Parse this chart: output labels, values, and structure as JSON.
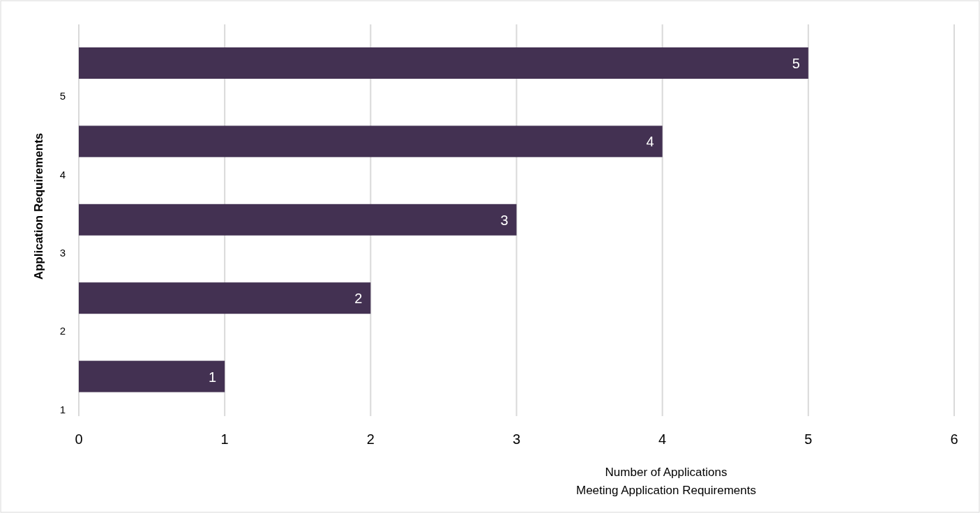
{
  "chart_data": {
    "type": "bar",
    "orientation": "horizontal",
    "ylabel": "Application Requirements",
    "xlabel": "Number of Applications\nMeeting Application Requirements",
    "categories": [
      "5",
      "4",
      "3",
      "2",
      "1"
    ],
    "values": [
      5,
      4,
      3,
      2,
      1
    ],
    "color": "#433152",
    "xlim": [
      0,
      6
    ],
    "xticks": [
      0,
      1,
      2,
      3,
      4,
      5,
      6
    ],
    "grid": "x",
    "data_labels": true
  }
}
